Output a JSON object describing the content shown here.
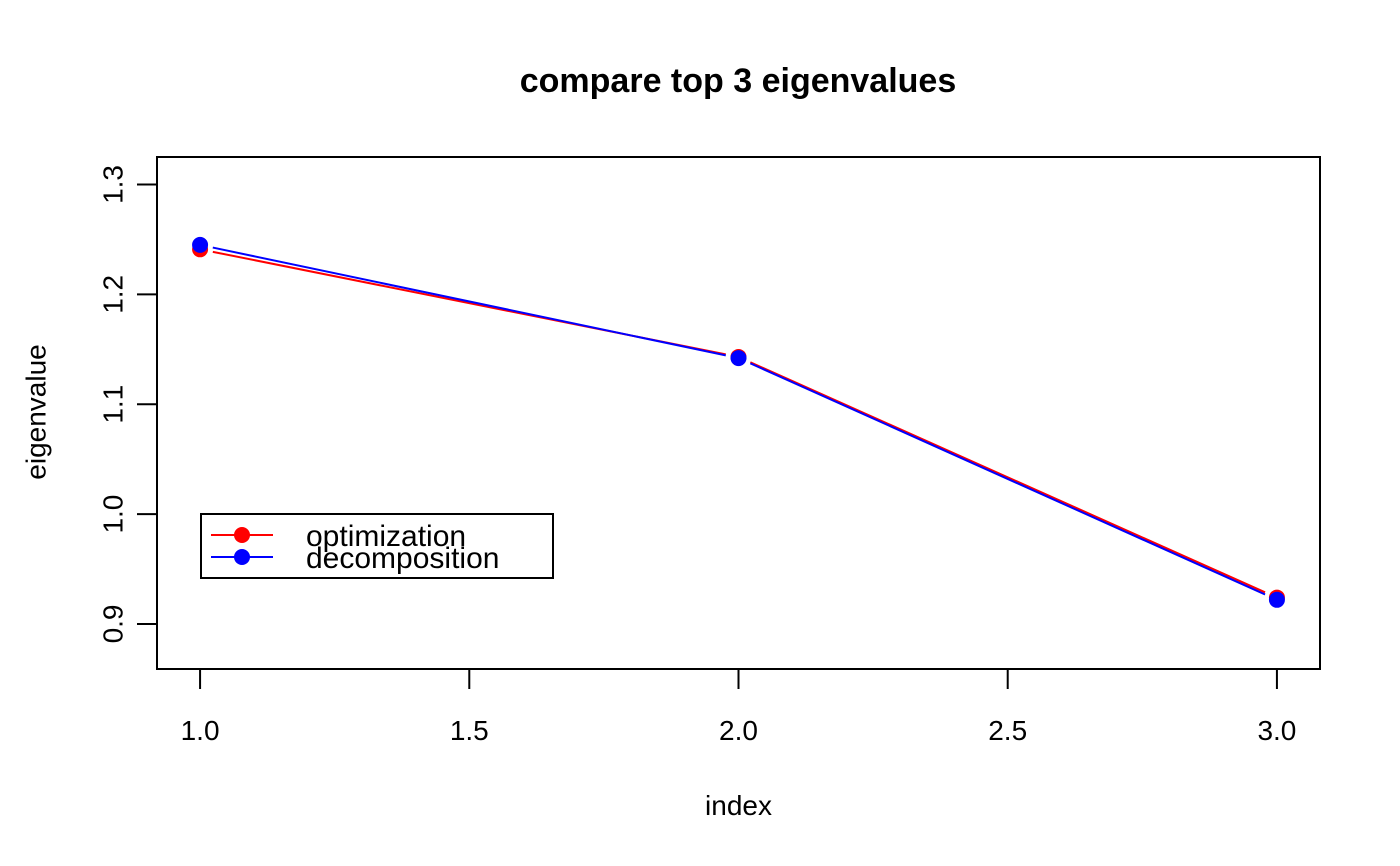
{
  "chart_data": {
    "type": "line",
    "title": "compare top 3 eigenvalues",
    "xlabel": "index",
    "ylabel": "eigenvalue",
    "xlim": [
      0.92,
      3.08
    ],
    "ylim": [
      0.859,
      1.325
    ],
    "xticks": [
      "1.0",
      "1.5",
      "2.0",
      "2.5",
      "3.0"
    ],
    "yticks": [
      "0.9",
      "1.0",
      "1.1",
      "1.2",
      "1.3"
    ],
    "x": [
      1,
      2,
      3
    ],
    "series": [
      {
        "name": "optimization",
        "color": "#ff0000",
        "values": [
          1.241,
          1.143,
          0.924
        ]
      },
      {
        "name": "decomposition",
        "color": "#0000ff",
        "values": [
          1.245,
          1.142,
          0.922
        ]
      }
    ],
    "legend": {
      "position": "bottom-left"
    },
    "grid": false
  }
}
